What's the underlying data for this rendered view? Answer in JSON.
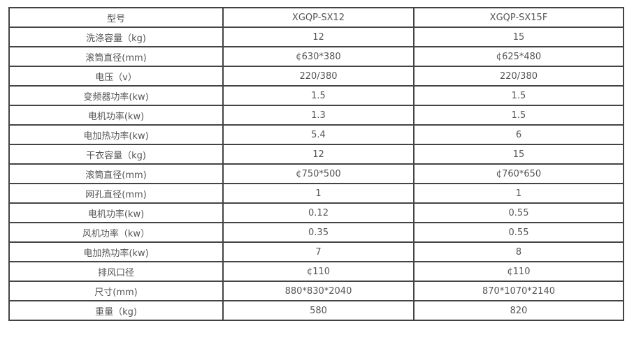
{
  "table": {
    "header": [
      "型号",
      "XGQP-SX12",
      "XGQP-SX15F"
    ],
    "rows": [
      [
        "洗涤容量（kg)",
        "12",
        "15"
      ],
      [
        "滚筒直径(mm)",
        "¢630*380",
        "¢625*480"
      ],
      [
        "电压（v）",
        "220/380",
        "220/380"
      ],
      [
        "变频器功率(kw)",
        "1.5",
        "1.5"
      ],
      [
        "电机功率(kw)",
        "1.3",
        "1.5"
      ],
      [
        "电加热功率(kw)",
        "5.4",
        "6"
      ],
      [
        "干衣容量（kg)",
        "12",
        "15"
      ],
      [
        "滚筒直径(mm)",
        "¢750*500",
        "¢760*650"
      ],
      [
        "网孔直径(mm)",
        "1",
        "1"
      ],
      [
        "电机功率(kw)",
        "0.12",
        "0.55"
      ],
      [
        "风机功率（kw）",
        "0.35",
        "0.55"
      ],
      [
        "电加热功率(kw)",
        "7",
        "8"
      ],
      [
        "排风口径",
        "¢110",
        "¢110"
      ],
      [
        "尺寸(mm)",
        "880*830*2040",
        "870*1070*2140"
      ],
      [
        "重量（kg)",
        "580",
        "820"
      ]
    ]
  }
}
